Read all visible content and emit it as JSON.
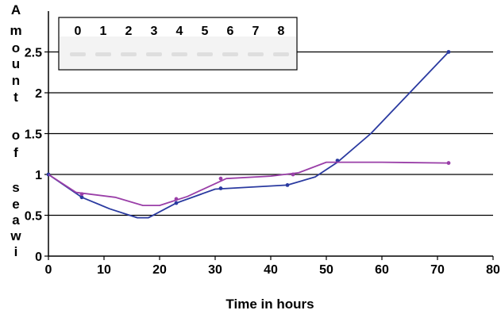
{
  "chart_data": {
    "type": "line",
    "title": "",
    "xlabel": "Time in hours",
    "ylabel_letters": [
      "A",
      "m",
      "o",
      "u",
      "n",
      "t",
      "o",
      "f",
      "s",
      "e",
      "a",
      "w",
      "i"
    ],
    "xlim": [
      0,
      80
    ],
    "ylim": [
      0,
      2.5
    ],
    "x_ticks": [
      "0",
      "10",
      "20",
      "30",
      "40",
      "50",
      "60",
      "70",
      "80"
    ],
    "y_ticks": [
      "0",
      "0.5",
      "1",
      "1.5",
      "2",
      "2.5"
    ],
    "grid": "horizontal",
    "series": [
      {
        "color": "#2a3aa0",
        "points": [
          [
            0,
            1.0
          ],
          [
            6,
            0.72
          ],
          [
            11,
            0.58
          ],
          [
            16,
            0.47
          ],
          [
            18,
            0.47
          ],
          [
            23,
            0.65
          ],
          [
            30,
            0.82
          ],
          [
            43,
            0.87
          ],
          [
            48,
            0.97
          ],
          [
            52,
            1.15
          ],
          [
            58,
            1.5
          ],
          [
            65,
            2.0
          ],
          [
            72,
            2.5
          ]
        ],
        "markers": [
          [
            0,
            1.0
          ],
          [
            6,
            0.72
          ],
          [
            23,
            0.65
          ],
          [
            31,
            0.83
          ],
          [
            43,
            0.87
          ],
          [
            52,
            1.17
          ],
          [
            72,
            2.5
          ]
        ]
      },
      {
        "color": "#9a3fa8",
        "points": [
          [
            0,
            1.0
          ],
          [
            5,
            0.78
          ],
          [
            12,
            0.72
          ],
          [
            17,
            0.62
          ],
          [
            20,
            0.62
          ],
          [
            25,
            0.73
          ],
          [
            32,
            0.95
          ],
          [
            40,
            0.98
          ],
          [
            45,
            1.02
          ],
          [
            50,
            1.15
          ],
          [
            60,
            1.15
          ],
          [
            72,
            1.14
          ]
        ],
        "markers": [
          [
            6,
            0.76
          ],
          [
            23,
            0.7
          ],
          [
            31,
            0.95
          ],
          [
            44,
            1.0
          ],
          [
            72,
            1.14
          ]
        ]
      }
    ],
    "inset": {
      "lane_labels": [
        "0",
        "1",
        "2",
        "3",
        "4",
        "5",
        "6",
        "7",
        "8"
      ]
    }
  }
}
